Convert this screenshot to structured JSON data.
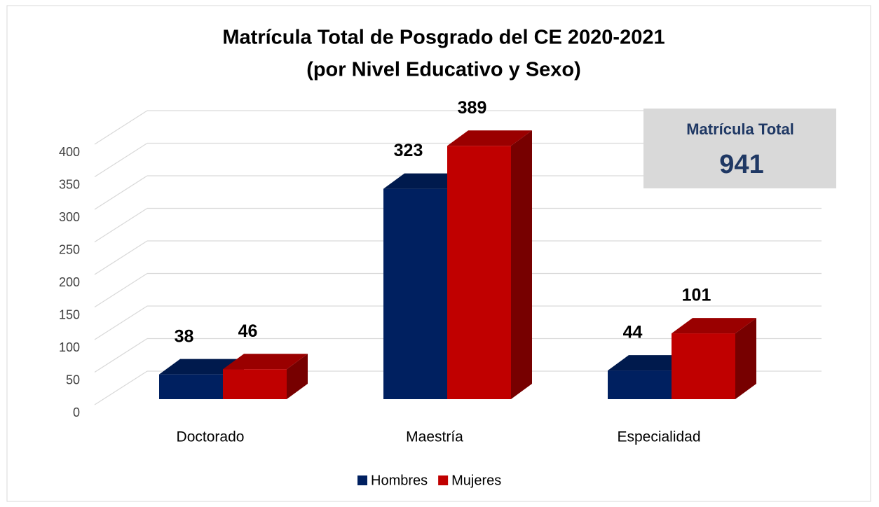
{
  "chart_data": {
    "type": "bar3d",
    "title": "Matrícula Total de Posgrado del CE 2020-2021",
    "subtitle": "(por Nivel Educativo y Sexo)",
    "categories": [
      "Doctorado",
      "Maestría",
      "Especialidad"
    ],
    "series": [
      {
        "name": "Hombres",
        "color": "#002060",
        "values": [
          38,
          323,
          44
        ]
      },
      {
        "name": "Mujeres",
        "color": "#c00000",
        "values": [
          46,
          389,
          101
        ]
      }
    ],
    "ylim": [
      0,
      400
    ],
    "yticks": [
      0,
      50,
      100,
      150,
      200,
      250,
      300,
      350,
      400
    ],
    "grid": true,
    "legend": "bottom",
    "annotation": {
      "title": "Matrícula Total",
      "value": 941
    }
  }
}
